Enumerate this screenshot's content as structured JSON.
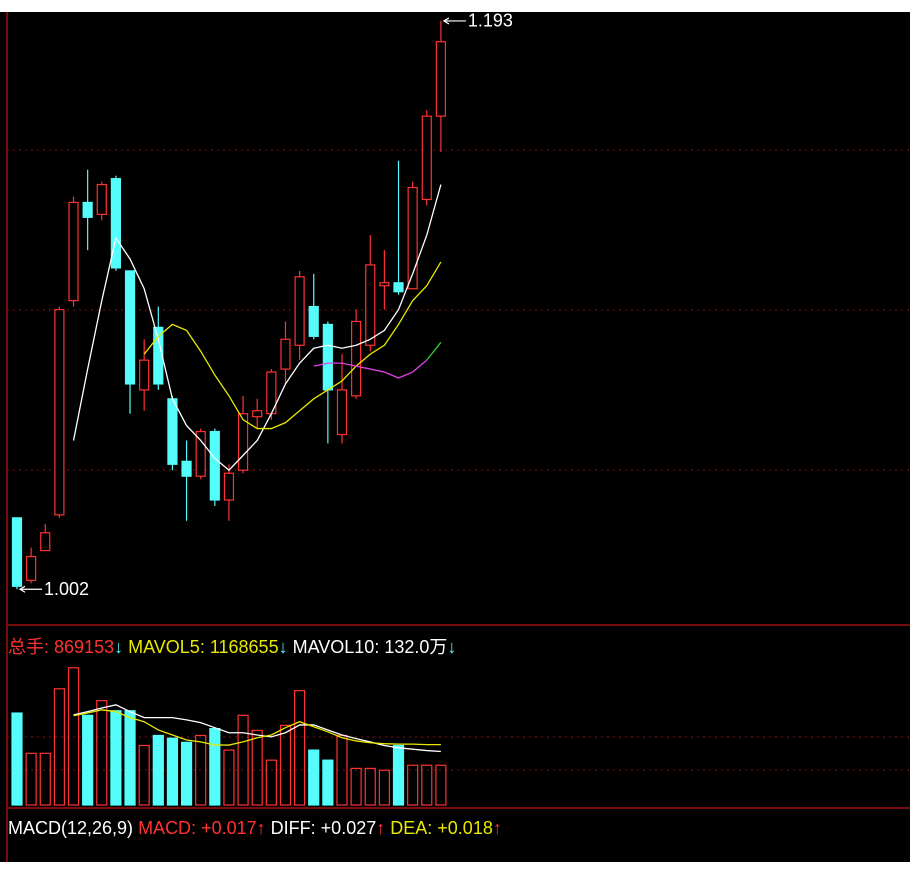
{
  "chart_data": [
    {
      "type": "candlestick",
      "open": [
        1.026,
        1.005,
        1.015,
        1.027,
        1.099,
        1.132,
        1.128,
        1.14,
        1.109,
        1.069,
        1.09,
        1.066,
        1.045,
        1.04,
        1.055,
        1.032,
        1.042,
        1.06,
        1.061,
        1.076,
        1.084,
        1.097,
        1.091,
        1.054,
        1.067,
        1.084,
        1.104,
        1.105,
        1.103,
        1.133,
        1.161
      ],
      "high": [
        1.026,
        1.016,
        1.024,
        1.097,
        1.134,
        1.143,
        1.139,
        1.141,
        1.109,
        1.086,
        1.097,
        1.067,
        1.052,
        1.056,
        1.056,
        1.044,
        1.067,
        1.066,
        1.076,
        1.092,
        1.109,
        1.108,
        1.092,
        1.081,
        1.096,
        1.121,
        1.116,
        1.146,
        1.139,
        1.163,
        1.193
      ],
      "low": [
        1.002,
        1.004,
        1.015,
        1.026,
        1.097,
        1.116,
        1.126,
        1.109,
        1.061,
        1.062,
        1.069,
        1.042,
        1.025,
        1.039,
        1.03,
        1.025,
        1.041,
        1.056,
        1.059,
        1.071,
        1.079,
        1.086,
        1.051,
        1.051,
        1.066,
        1.082,
        1.096,
        1.101,
        1.103,
        1.131,
        1.149
      ],
      "close": [
        1.003,
        1.013,
        1.021,
        1.096,
        1.132,
        1.127,
        1.138,
        1.11,
        1.071,
        1.079,
        1.071,
        1.044,
        1.04,
        1.055,
        1.032,
        1.041,
        1.061,
        1.062,
        1.075,
        1.086,
        1.107,
        1.087,
        1.069,
        1.069,
        1.092,
        1.111,
        1.105,
        1.102,
        1.137,
        1.161,
        1.186
      ],
      "up_color": "#ff3232",
      "down_color": "#54fcfc",
      "lines": [
        {
          "color": "#ffffff",
          "values": [
            null,
            null,
            null,
            null,
            1.052,
            1.076,
            1.099,
            1.12,
            1.113,
            1.103,
            1.086,
            1.066,
            1.057,
            1.052,
            1.046,
            1.042,
            1.047,
            1.052,
            1.061,
            1.071,
            1.078,
            1.083,
            1.084,
            1.083,
            1.084,
            1.086,
            1.089,
            1.096,
            1.108,
            1.121,
            1.138
          ]
        },
        {
          "color": "#e8e800",
          "values": [
            null,
            null,
            null,
            null,
            null,
            null,
            null,
            null,
            null,
            1.081,
            1.087,
            1.091,
            1.089,
            1.082,
            1.074,
            1.067,
            1.059,
            1.056,
            1.056,
            1.058,
            1.062,
            1.066,
            1.069,
            1.072,
            1.077,
            1.081,
            1.084,
            1.091,
            1.099,
            1.104,
            1.112
          ]
        },
        {
          "color": "#e040e0",
          "values": [
            null,
            null,
            null,
            null,
            null,
            null,
            null,
            null,
            null,
            null,
            null,
            null,
            null,
            null,
            null,
            null,
            null,
            null,
            null,
            null,
            null,
            1.077,
            1.078,
            1.078,
            1.077,
            1.076,
            1.075,
            1.073,
            1.075,
            1.079,
            null
          ]
        },
        {
          "color": "#30d030",
          "values": [
            null,
            null,
            null,
            null,
            null,
            null,
            null,
            null,
            null,
            null,
            null,
            null,
            null,
            null,
            null,
            null,
            null,
            null,
            null,
            null,
            null,
            null,
            null,
            null,
            null,
            null,
            null,
            null,
            null,
            1.079,
            1.085
          ]
        }
      ],
      "ylim": [
        0.991,
        1.196
      ],
      "max_label": 1.193,
      "min_label": 1.002
    },
    {
      "type": "bar",
      "ylim": [
        0,
        4000000
      ],
      "series": [
        {
          "name": "总手:",
          "color": "#ff3232",
          "arrow": "↓",
          "values": [
            2010000,
            1130000,
            1130000,
            2540000,
            3000000,
            1960000,
            2280000,
            2060000,
            2060000,
            1300000,
            1520000,
            1460000,
            1370000,
            1520000,
            1670000,
            1200000,
            1960000,
            1630000,
            980000,
            1740000,
            2500000,
            1200000,
            980000,
            1520000,
            800000,
            800000,
            760000,
            1300000,
            869153,
            869153,
            869153
          ]
        },
        {
          "name": "MAVOL5:",
          "color": "#e8e800",
          "line_color": "#ffffff",
          "arrow": "↓",
          "values": [
            null,
            null,
            null,
            null,
            1970000,
            2040000,
            2120000,
            2190000,
            2040000,
            1910000,
            1910000,
            1910000,
            1860000,
            1800000,
            1690000,
            1580000,
            1580000,
            1530000,
            1490000,
            1580000,
            1750000,
            1750000,
            1640000,
            1530000,
            1450000,
            1380000,
            1300000,
            1250000,
            1220000,
            1190000,
            1168655
          ]
        },
        {
          "name": "MAVOL10:",
          "color": "#ffffff",
          "line_color": "#e8e800",
          "arrow": "↓",
          "values": [
            null,
            null,
            null,
            null,
            1950000,
            2010000,
            2080000,
            2040000,
            1910000,
            1820000,
            1640000,
            1530000,
            1420000,
            1380000,
            1310000,
            1310000,
            1380000,
            1470000,
            1530000,
            1690000,
            1820000,
            1710000,
            1600000,
            1470000,
            1400000,
            1360000,
            1340000,
            1330000,
            1330000,
            1320000,
            1320000
          ],
          "value_labels": [
            null,
            null,
            null,
            null,
            null,
            null,
            null,
            null,
            null,
            null,
            null,
            null,
            null,
            null,
            null,
            null,
            null,
            null,
            null,
            null,
            null,
            null,
            null,
            null,
            null,
            null,
            null,
            null,
            null,
            null,
            "132.0万"
          ]
        }
      ]
    },
    {
      "type": "indicator",
      "title": "MACD(12,26,9)",
      "series": [
        {
          "name": "MACD:",
          "value": "+0.017",
          "arrow": "↑",
          "color": "#ff3232"
        },
        {
          "name": "DIFF:",
          "value": "+0.027",
          "arrow": "↑",
          "color": "#ffffff"
        },
        {
          "name": "DEA:",
          "value": "+0.018",
          "arrow": "↑",
          "color": "#e8e800"
        }
      ]
    }
  ]
}
